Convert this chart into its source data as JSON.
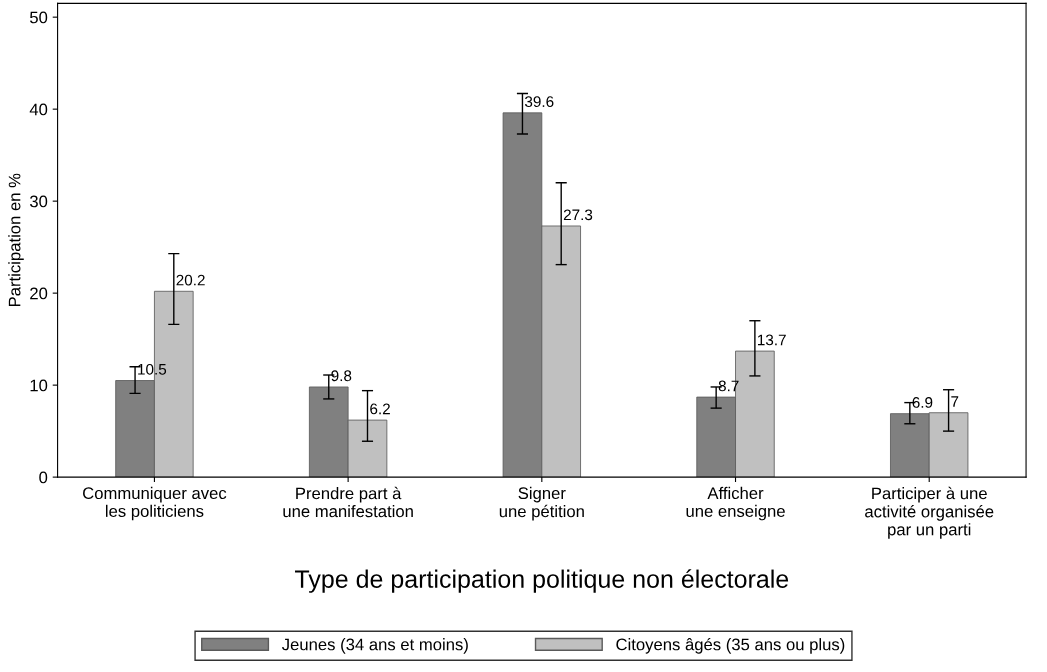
{
  "chart_data": {
    "type": "bar",
    "xlabel": "Type de participation politique non électorale",
    "ylabel": "Participation en %",
    "categories": [
      "Communiquer avec\nles politiciens",
      "Prendre part à\nune manifestation",
      "Signer\nune pétition",
      "Afficher\nune enseigne",
      "Participer à une\nactivité organisée\npar un parti"
    ],
    "series": [
      {
        "name": "Jeunes (34 ans et moins)",
        "color": "#808080",
        "values": [
          10.5,
          9.8,
          39.6,
          8.7,
          6.9
        ],
        "errors": [
          [
            9.1,
            12.0
          ],
          [
            8.5,
            11.1
          ],
          [
            37.3,
            41.7
          ],
          [
            7.5,
            9.8
          ],
          [
            5.8,
            8.1
          ]
        ]
      },
      {
        "name": "Citoyens âgés (35 ans ou plus)",
        "color": "#c0c0c0",
        "values": [
          20.2,
          6.2,
          27.3,
          13.7,
          7
        ],
        "errors": [
          [
            16.6,
            24.3
          ],
          [
            3.9,
            9.4
          ],
          [
            23.1,
            32.0
          ],
          [
            11.0,
            17.0
          ],
          [
            5.0,
            9.5
          ]
        ]
      }
    ],
    "ylim": [
      0,
      51.5
    ],
    "yticks": [
      0,
      10,
      20,
      30,
      40,
      50
    ],
    "data_labels": true,
    "grid": false,
    "legend": "bottom"
  }
}
